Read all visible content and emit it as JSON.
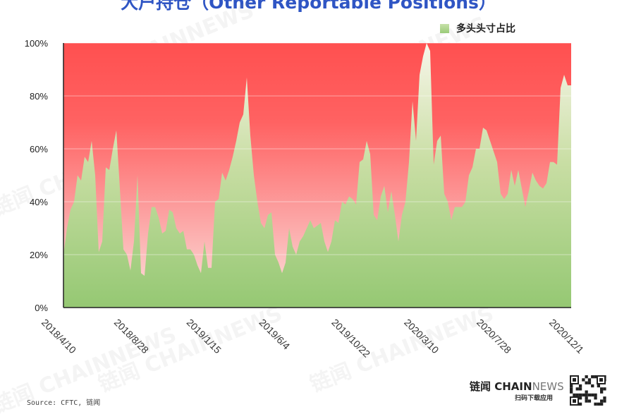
{
  "title": "大户持仓（Other Reportable Positions）",
  "legend": {
    "label": "多头头寸占比",
    "color": "#9acb78"
  },
  "source": "Source: CFTC, 链闻",
  "brand": {
    "name_cn": "链闻",
    "name_chain": "CHAIN",
    "name_news": "NEWS",
    "subtitle": "扫码下载应用"
  },
  "watermark": "链闻 CHAINNEWS",
  "colors": {
    "background_top": "#ff5050",
    "background_bottom": "#fde4e0",
    "area_top": "#f8f6ea",
    "area_bottom": "#95c873"
  },
  "chart_data": {
    "type": "area",
    "title": "大户持仓（Other Reportable Positions）",
    "xlabel": "",
    "ylabel": "",
    "ylim": [
      0,
      100
    ],
    "y_ticks": [
      "0%",
      "20%",
      "40%",
      "60%",
      "80%",
      "100%"
    ],
    "x_tick_labels": [
      "2018/4/10",
      "2018/8/28",
      "2019/1/15",
      "2019/6/4",
      "2019/10/22",
      "2020/3/10",
      "2020/7/28",
      "2020/12/1"
    ],
    "x_range": [
      "2018/4/10",
      "2020/12/1"
    ],
    "grid": true,
    "legend_position": "top-right",
    "series": [
      {
        "name": "多头头寸占比",
        "values": [
          20,
          30,
          37,
          40,
          50,
          48,
          57,
          55,
          63,
          50,
          21,
          25,
          53,
          52,
          60,
          67,
          45,
          22,
          20,
          14,
          25,
          50,
          13,
          12,
          28,
          38,
          38,
          34,
          28,
          29,
          37,
          36,
          30,
          28,
          29,
          22,
          22,
          20,
          16,
          13,
          25,
          15,
          15,
          40,
          41,
          51,
          48,
          52,
          57,
          63,
          70,
          73,
          87,
          65,
          50,
          40,
          32,
          30,
          35,
          36,
          20,
          17,
          13,
          17,
          30,
          23,
          20,
          25,
          27,
          30,
          33,
          30,
          31,
          32,
          25,
          21,
          25,
          33,
          32,
          40,
          39,
          42,
          41,
          39,
          55,
          56,
          63,
          58,
          35,
          33,
          42,
          46,
          36,
          44,
          35,
          25,
          35,
          40,
          55,
          78,
          63,
          88,
          95,
          100,
          97,
          54,
          63,
          65,
          43,
          40,
          33,
          38,
          38,
          38,
          40,
          50,
          53,
          60,
          60,
          68,
          67,
          63,
          59,
          55,
          43,
          41,
          43,
          52,
          46,
          52,
          45,
          38,
          44,
          51,
          48,
          46,
          45,
          47,
          55,
          55,
          54,
          83,
          88,
          84,
          84
        ]
      }
    ]
  }
}
